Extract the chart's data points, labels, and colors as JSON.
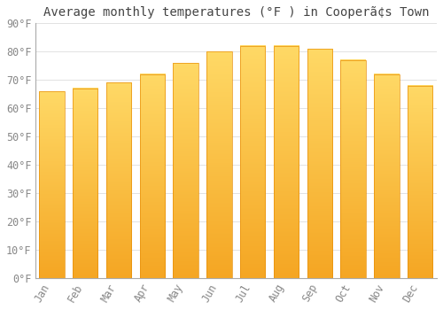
{
  "title": "Average monthly temperatures (°F ) in Cooperã¢s Town",
  "months": [
    "Jan",
    "Feb",
    "Mar",
    "Apr",
    "May",
    "Jun",
    "Jul",
    "Aug",
    "Sep",
    "Oct",
    "Nov",
    "Dec"
  ],
  "values": [
    66,
    67,
    69,
    72,
    76,
    80,
    82,
    82,
    81,
    77,
    72,
    68
  ],
  "bar_color_bottom": "#F5A623",
  "bar_color_top": "#FFD966",
  "bar_edge_color": "#E8900A",
  "background_color": "#FFFFFF",
  "grid_color": "#DDDDDD",
  "ylim": [
    0,
    90
  ],
  "yticks": [
    0,
    10,
    20,
    30,
    40,
    50,
    60,
    70,
    80,
    90
  ],
  "ytick_labels": [
    "0°F",
    "10°F",
    "20°F",
    "30°F",
    "40°F",
    "50°F",
    "60°F",
    "70°F",
    "80°F",
    "90°F"
  ],
  "title_fontsize": 10,
  "tick_fontsize": 8.5,
  "tick_font_color": "#888888",
  "spine_color": "#AAAAAA"
}
